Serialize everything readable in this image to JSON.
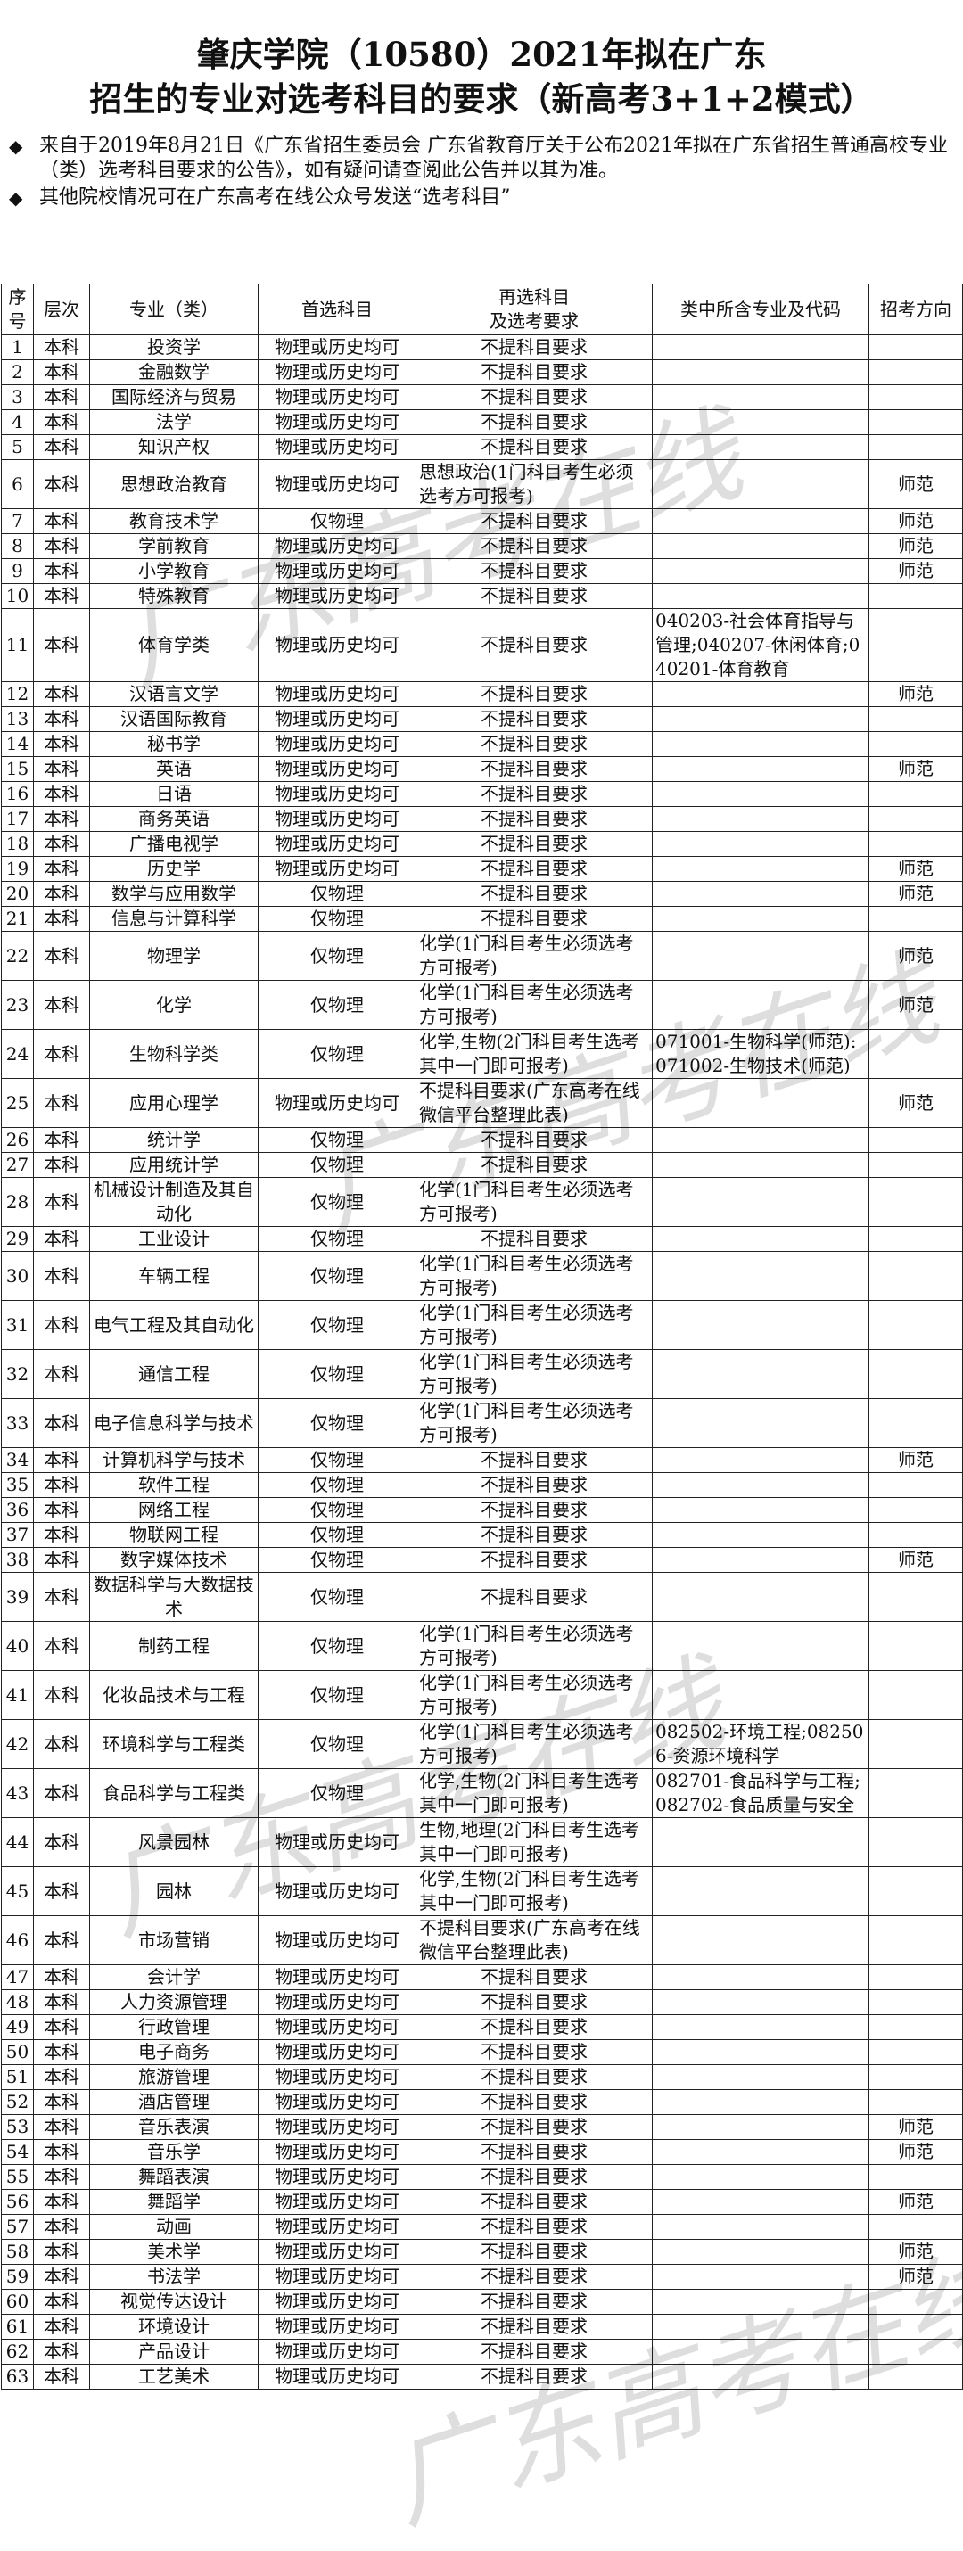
{
  "header": {
    "title": [
      "肇庆学院（10580）2021年拟在广东",
      "招生的专业对选考科目的要求（新高考3+1+2模式）"
    ],
    "notes": [
      "来自于2019年8月21日《广东省招生委员会 广东省教育厅关于公布2021年拟在广东省招生普通高校专业（类）选考科目要求的公告》，如有疑问请查阅此公告并以其为准。",
      "其他院校情况可在广东高考在线公众号发送“选考科目”"
    ]
  },
  "watermark": "广东高考在线",
  "table": {
    "columns": [
      "序号",
      "层次",
      "专业（类）",
      "首选科目",
      [
        "再选科目",
        "及选考要求"
      ],
      "类中所含专业及代码",
      "招考方向"
    ],
    "rows": [
      {
        "n": 1,
        "level": "本科",
        "major": "投资学",
        "first": "物理或历史均可",
        "second": "不提科目要求"
      },
      {
        "n": 2,
        "level": "本科",
        "major": "金融数学",
        "first": "物理或历史均可",
        "second": "不提科目要求"
      },
      {
        "n": 3,
        "level": "本科",
        "major": "国际经济与贸易",
        "first": "物理或历史均可",
        "second": "不提科目要求"
      },
      {
        "n": 4,
        "level": "本科",
        "major": "法学",
        "first": "物理或历史均可",
        "second": "不提科目要求"
      },
      {
        "n": 5,
        "level": "本科",
        "major": "知识产权",
        "first": "物理或历史均可",
        "second": "不提科目要求"
      },
      {
        "n": 6,
        "level": "本科",
        "major": "思想政治教育",
        "first": "物理或历史均可",
        "second": "思想政治(1门科目考生必须选考方可报考)",
        "dir": "师范"
      },
      {
        "n": 7,
        "level": "本科",
        "major": "教育技术学",
        "first": "仅物理",
        "second": "不提科目要求",
        "dir": "师范"
      },
      {
        "n": 8,
        "level": "本科",
        "major": "学前教育",
        "first": "物理或历史均可",
        "second": "不提科目要求",
        "dir": "师范"
      },
      {
        "n": 9,
        "level": "本科",
        "major": "小学教育",
        "first": "物理或历史均可",
        "second": "不提科目要求",
        "dir": "师范"
      },
      {
        "n": 10,
        "level": "本科",
        "major": "特殊教育",
        "first": "物理或历史均可",
        "second": "不提科目要求"
      },
      {
        "n": 11,
        "level": "本科",
        "major": "体育学类",
        "first": "物理或历史均可",
        "second": "不提科目要求",
        "codes": "040203-社会体育指导与管理;040207-休闲体育;040201-体育教育"
      },
      {
        "n": 12,
        "level": "本科",
        "major": "汉语言文学",
        "first": "物理或历史均可",
        "second": "不提科目要求",
        "dir": "师范"
      },
      {
        "n": 13,
        "level": "本科",
        "major": "汉语国际教育",
        "first": "物理或历史均可",
        "second": "不提科目要求"
      },
      {
        "n": 14,
        "level": "本科",
        "major": "秘书学",
        "first": "物理或历史均可",
        "second": "不提科目要求"
      },
      {
        "n": 15,
        "level": "本科",
        "major": "英语",
        "first": "物理或历史均可",
        "second": "不提科目要求",
        "dir": "师范"
      },
      {
        "n": 16,
        "level": "本科",
        "major": "日语",
        "first": "物理或历史均可",
        "second": "不提科目要求"
      },
      {
        "n": 17,
        "level": "本科",
        "major": "商务英语",
        "first": "物理或历史均可",
        "second": "不提科目要求"
      },
      {
        "n": 18,
        "level": "本科",
        "major": "广播电视学",
        "first": "物理或历史均可",
        "second": "不提科目要求"
      },
      {
        "n": 19,
        "level": "本科",
        "major": "历史学",
        "first": "物理或历史均可",
        "second": "不提科目要求",
        "dir": "师范"
      },
      {
        "n": 20,
        "level": "本科",
        "major": "数学与应用数学",
        "first": "仅物理",
        "second": "不提科目要求",
        "dir": "师范"
      },
      {
        "n": 21,
        "level": "本科",
        "major": "信息与计算科学",
        "first": "仅物理",
        "second": "不提科目要求"
      },
      {
        "n": 22,
        "level": "本科",
        "major": "物理学",
        "first": "仅物理",
        "second": "化学(1门科目考生必须选考方可报考)",
        "dir": "师范"
      },
      {
        "n": 23,
        "level": "本科",
        "major": "化学",
        "first": "仅物理",
        "second": "化学(1门科目考生必须选考方可报考)",
        "dir": "师范"
      },
      {
        "n": 24,
        "level": "本科",
        "major": "生物科学类",
        "first": "仅物理",
        "second": "化学,生物(2门科目考生选考其中一门即可报考)",
        "codes": "071001-生物科学(师范):071002-生物技术(师范)"
      },
      {
        "n": 25,
        "level": "本科",
        "major": "应用心理学",
        "first": "物理或历史均可",
        "second": "不提科目要求(广东高考在线微信平台整理此表)",
        "dir": "师范"
      },
      {
        "n": 26,
        "level": "本科",
        "major": "统计学",
        "first": "仅物理",
        "second": "不提科目要求"
      },
      {
        "n": 27,
        "level": "本科",
        "major": "应用统计学",
        "first": "仅物理",
        "second": "不提科目要求"
      },
      {
        "n": 28,
        "level": "本科",
        "major": "机械设计制造及其自动化",
        "first": "仅物理",
        "second": "化学(1门科目考生必须选考方可报考)"
      },
      {
        "n": 29,
        "level": "本科",
        "major": "工业设计",
        "first": "仅物理",
        "second": "不提科目要求"
      },
      {
        "n": 30,
        "level": "本科",
        "major": "车辆工程",
        "first": "仅物理",
        "second": "化学(1门科目考生必须选考方可报考)"
      },
      {
        "n": 31,
        "level": "本科",
        "major": "电气工程及其自动化",
        "first": "仅物理",
        "second": "化学(1门科目考生必须选考方可报考)"
      },
      {
        "n": 32,
        "level": "本科",
        "major": "通信工程",
        "first": "仅物理",
        "second": "化学(1门科目考生必须选考方可报考)"
      },
      {
        "n": 33,
        "level": "本科",
        "major": "电子信息科学与技术",
        "first": "仅物理",
        "second": "化学(1门科目考生必须选考方可报考)"
      },
      {
        "n": 34,
        "level": "本科",
        "major": "计算机科学与技术",
        "first": "仅物理",
        "second": "不提科目要求",
        "dir": "师范"
      },
      {
        "n": 35,
        "level": "本科",
        "major": "软件工程",
        "first": "仅物理",
        "second": "不提科目要求"
      },
      {
        "n": 36,
        "level": "本科",
        "major": "网络工程",
        "first": "仅物理",
        "second": "不提科目要求"
      },
      {
        "n": 37,
        "level": "本科",
        "major": "物联网工程",
        "first": "仅物理",
        "second": "不提科目要求"
      },
      {
        "n": 38,
        "level": "本科",
        "major": "数字媒体技术",
        "first": "仅物理",
        "second": "不提科目要求",
        "dir": "师范"
      },
      {
        "n": 39,
        "level": "本科",
        "major": "数据科学与大数据技术",
        "first": "仅物理",
        "second": "不提科目要求"
      },
      {
        "n": 40,
        "level": "本科",
        "major": "制药工程",
        "first": "仅物理",
        "second": "化学(1门科目考生必须选考方可报考)"
      },
      {
        "n": 41,
        "level": "本科",
        "major": "化妆品技术与工程",
        "first": "仅物理",
        "second": "化学(1门科目考生必须选考方可报考)"
      },
      {
        "n": 42,
        "level": "本科",
        "major": "环境科学与工程类",
        "first": "仅物理",
        "second": "化学(1门科目考生必须选考方可报考)",
        "codes": "082502-环境工程;082506-资源环境科学"
      },
      {
        "n": 43,
        "level": "本科",
        "major": "食品科学与工程类",
        "first": "仅物理",
        "second": "化学,生物(2门科目考生选考其中一门即可报考)",
        "codes": "082701-食品科学与工程;082702-食品质量与安全"
      },
      {
        "n": 44,
        "level": "本科",
        "major": "风景园林",
        "first": "物理或历史均可",
        "second": "生物,地理(2门科目考生选考其中一门即可报考)"
      },
      {
        "n": 45,
        "level": "本科",
        "major": "园林",
        "first": "物理或历史均可",
        "second": "化学,生物(2门科目考生选考其中一门即可报考)"
      },
      {
        "n": 46,
        "level": "本科",
        "major": "市场营销",
        "first": "物理或历史均可",
        "second": "不提科目要求(广东高考在线微信平台整理此表)"
      },
      {
        "n": 47,
        "level": "本科",
        "major": "会计学",
        "first": "物理或历史均可",
        "second": "不提科目要求"
      },
      {
        "n": 48,
        "level": "本科",
        "major": "人力资源管理",
        "first": "物理或历史均可",
        "second": "不提科目要求"
      },
      {
        "n": 49,
        "level": "本科",
        "major": "行政管理",
        "first": "物理或历史均可",
        "second": "不提科目要求"
      },
      {
        "n": 50,
        "level": "本科",
        "major": "电子商务",
        "first": "物理或历史均可",
        "second": "不提科目要求"
      },
      {
        "n": 51,
        "level": "本科",
        "major": "旅游管理",
        "first": "物理或历史均可",
        "second": "不提科目要求"
      },
      {
        "n": 52,
        "level": "本科",
        "major": "酒店管理",
        "first": "物理或历史均可",
        "second": "不提科目要求"
      },
      {
        "n": 53,
        "level": "本科",
        "major": "音乐表演",
        "first": "物理或历史均可",
        "second": "不提科目要求",
        "dir": "师范"
      },
      {
        "n": 54,
        "level": "本科",
        "major": "音乐学",
        "first": "物理或历史均可",
        "second": "不提科目要求",
        "dir": "师范"
      },
      {
        "n": 55,
        "level": "本科",
        "major": "舞蹈表演",
        "first": "物理或历史均可",
        "second": "不提科目要求"
      },
      {
        "n": 56,
        "level": "本科",
        "major": "舞蹈学",
        "first": "物理或历史均可",
        "second": "不提科目要求",
        "dir": "师范"
      },
      {
        "n": 57,
        "level": "本科",
        "major": "动画",
        "first": "物理或历史均可",
        "second": "不提科目要求"
      },
      {
        "n": 58,
        "level": "本科",
        "major": "美术学",
        "first": "物理或历史均可",
        "second": "不提科目要求",
        "dir": "师范"
      },
      {
        "n": 59,
        "level": "本科",
        "major": "书法学",
        "first": "物理或历史均可",
        "second": "不提科目要求",
        "dir": "师范"
      },
      {
        "n": 60,
        "level": "本科",
        "major": "视觉传达设计",
        "first": "物理或历史均可",
        "second": "不提科目要求"
      },
      {
        "n": 61,
        "level": "本科",
        "major": "环境设计",
        "first": "物理或历史均可",
        "second": "不提科目要求"
      },
      {
        "n": 62,
        "level": "本科",
        "major": "产品设计",
        "first": "物理或历史均可",
        "second": "不提科目要求"
      },
      {
        "n": 63,
        "level": "本科",
        "major": "工艺美术",
        "first": "物理或历史均可",
        "second": "不提科目要求"
      }
    ]
  }
}
